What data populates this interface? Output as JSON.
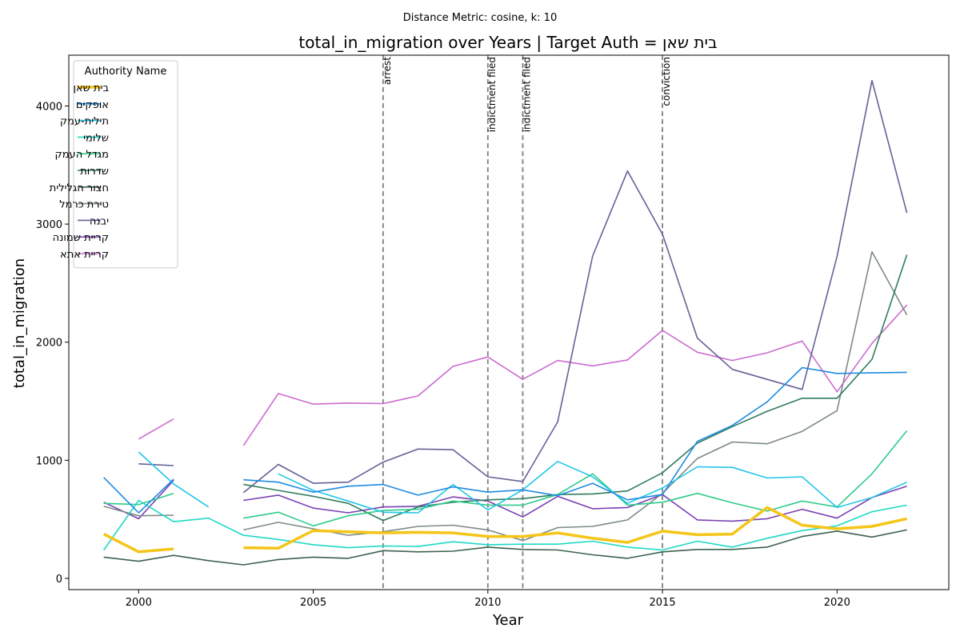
{
  "chart_data": {
    "type": "line",
    "suptitle": "Distance Metric: cosine, k: 10",
    "title": "total_in_migration over Years | Target Auth = בית שאן",
    "xlabel": "Year",
    "ylabel": "total_in_migration",
    "xlim": [
      1998,
      2023.2
    ],
    "ylim": [
      -95,
      4430
    ],
    "xticks": [
      2000,
      2005,
      2010,
      2015,
      2020
    ],
    "yticks": [
      0,
      1000,
      2000,
      3000,
      4000
    ],
    "grid": false,
    "legend": {
      "title": "Authority Name",
      "placement": "top-left"
    },
    "events": [
      {
        "x": 2007,
        "label": "arrest"
      },
      {
        "x": 2010,
        "label": "indictment filed"
      },
      {
        "x": 2011,
        "label": "indictment filed"
      },
      {
        "x": 2015,
        "label": "conviction"
      }
    ],
    "x": [
      1999,
      2000,
      2001,
      2002,
      2003,
      2004,
      2005,
      2006,
      2007,
      2008,
      2009,
      2010,
      2011,
      2012,
      2013,
      2014,
      2015,
      2016,
      2017,
      2018,
      2019,
      2020,
      2021,
      2022
    ],
    "series": [
      {
        "name": "בית שאן",
        "color": "#f5c518",
        "width": 3.5,
        "values": [
          375,
          225,
          250,
          null,
          260,
          255,
          405,
          395,
          385,
          390,
          385,
          355,
          355,
          385,
          340,
          305,
          400,
          370,
          375,
          600,
          450,
          420,
          440,
          505
        ]
      },
      {
        "name": "אופקים",
        "color": "#1f8be0",
        "width": 1.6,
        "values": [
          855,
          555,
          840,
          null,
          835,
          815,
          730,
          780,
          795,
          705,
          775,
          730,
          750,
          700,
          805,
          665,
          710,
          1160,
          1295,
          1495,
          1785,
          1735,
          1740,
          1745
        ]
      },
      {
        "name": "תילית-עמק",
        "color": "#22c7e8",
        "width": 1.6,
        "values": [
          null,
          1070,
          800,
          605,
          null,
          885,
          745,
          655,
          560,
          555,
          795,
          580,
          750,
          990,
          860,
          635,
          765,
          945,
          940,
          850,
          860,
          600,
          685,
          815
        ]
      },
      {
        "name": "שלומי",
        "color": "#1ed9c6",
        "width": 1.6,
        "values": [
          240,
          660,
          480,
          510,
          365,
          330,
          285,
          260,
          275,
          270,
          310,
          285,
          290,
          290,
          315,
          265,
          240,
          315,
          265,
          340,
          405,
          445,
          565,
          620
        ]
      },
      {
        "name": "מגדל העמק",
        "color": "#2ecc8a",
        "width": 1.6,
        "values": [
          635,
          625,
          720,
          null,
          510,
          560,
          445,
          530,
          575,
          585,
          655,
          620,
          620,
          710,
          885,
          620,
          645,
          720,
          640,
          570,
          655,
          605,
          885,
          1250
        ]
      },
      {
        "name": "שדרות",
        "color": "#2f7d5e",
        "width": 1.6,
        "values": [
          null,
          null,
          null,
          null,
          795,
          745,
          695,
          635,
          490,
          605,
          645,
          665,
          675,
          710,
          715,
          740,
          895,
          1145,
          1285,
          1415,
          1525,
          1525,
          1855,
          2740
        ]
      },
      {
        "name": "חצור הגלילית",
        "color": "#3e6151",
        "width": 1.6,
        "values": [
          180,
          145,
          195,
          150,
          115,
          160,
          180,
          170,
          235,
          225,
          230,
          265,
          245,
          240,
          200,
          170,
          225,
          245,
          245,
          265,
          355,
          400,
          350,
          410
        ]
      },
      {
        "name": "טירת כרמל",
        "color": "#7d8a87",
        "width": 1.6,
        "values": [
          610,
          530,
          535,
          null,
          410,
          475,
          420,
          365,
          395,
          440,
          450,
          410,
          320,
          430,
          440,
          495,
          720,
          1015,
          1155,
          1140,
          1245,
          1420,
          2765,
          2230
        ]
      },
      {
        "name": "יבנה",
        "color": "#656198",
        "width": 1.6,
        "values": [
          null,
          970,
          955,
          null,
          725,
          965,
          805,
          815,
          985,
          1095,
          1090,
          860,
          820,
          1325,
          2730,
          3450,
          2915,
          2035,
          1770,
          1685,
          1600,
          2725,
          4215,
          3095
        ]
      },
      {
        "name": "קריית שמונה",
        "color": "#7a40b5",
        "width": 1.6,
        "values": [
          645,
          505,
          830,
          null,
          660,
          705,
          595,
          555,
          605,
          610,
          690,
          655,
          520,
          695,
          590,
          600,
          710,
          495,
          485,
          505,
          585,
          510,
          685,
          780
        ]
      },
      {
        "name": "קריית אתא",
        "color": "#cc6bcf",
        "width": 1.6,
        "values": [
          null,
          1180,
          1350,
          null,
          1125,
          1565,
          1475,
          1485,
          1480,
          1545,
          1795,
          1875,
          1685,
          1845,
          1800,
          1850,
          2100,
          1915,
          1845,
          1910,
          2010,
          1580,
          1990,
          2315
        ]
      }
    ]
  }
}
